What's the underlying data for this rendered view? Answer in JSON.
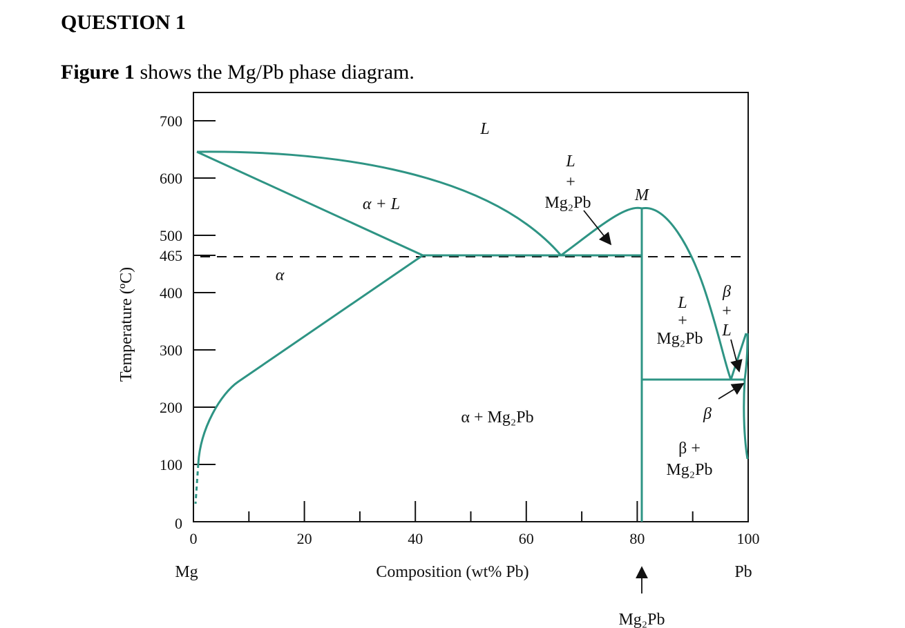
{
  "question": {
    "title": "QUESTION 1",
    "intro_bold": "Figure 1",
    "intro_text": " shows the Mg/Pb phase diagram."
  },
  "diagram": {
    "y_axis_title": "Temperature (ºC)",
    "x_axis_title": "Composition (wt% Pb)",
    "y_ticks": [
      {
        "value": 0,
        "label": "0"
      },
      {
        "value": 100,
        "label": "100"
      },
      {
        "value": 200,
        "label": "200"
      },
      {
        "value": 300,
        "label": "300"
      },
      {
        "value": 400,
        "label": "400"
      },
      {
        "value": 465,
        "label": "465"
      },
      {
        "value": 500,
        "label": "500"
      },
      {
        "value": 600,
        "label": "600"
      },
      {
        "value": 700,
        "label": "700"
      }
    ],
    "x_ticks": [
      {
        "value": 0,
        "label": "0"
      },
      {
        "value": 20,
        "label": "20"
      },
      {
        "value": 40,
        "label": "40"
      },
      {
        "value": 60,
        "label": "60"
      },
      {
        "value": 80,
        "label": "80"
      },
      {
        "value": 100,
        "label": "100"
      }
    ],
    "left_element": "Mg",
    "right_element": "Pb",
    "compound_label": "Mg₂Pb",
    "compound_marker_letter": "M",
    "regions": {
      "liquid": "L",
      "alpha_liquid": "α + L",
      "alpha": "α",
      "alpha_compound": "α + Mg₂Pb",
      "liquid_compound_left": [
        "L",
        "+",
        "Mg₂Pb"
      ],
      "liquid_compound_right": [
        "L",
        "+",
        "Mg₂Pb"
      ],
      "beta_liquid": [
        "β",
        "+",
        "L"
      ],
      "beta": "β",
      "beta_compound": [
        "β +",
        "Mg₂Pb"
      ]
    },
    "eutectic_temperature": 465,
    "line_color": "#2e9484"
  }
}
